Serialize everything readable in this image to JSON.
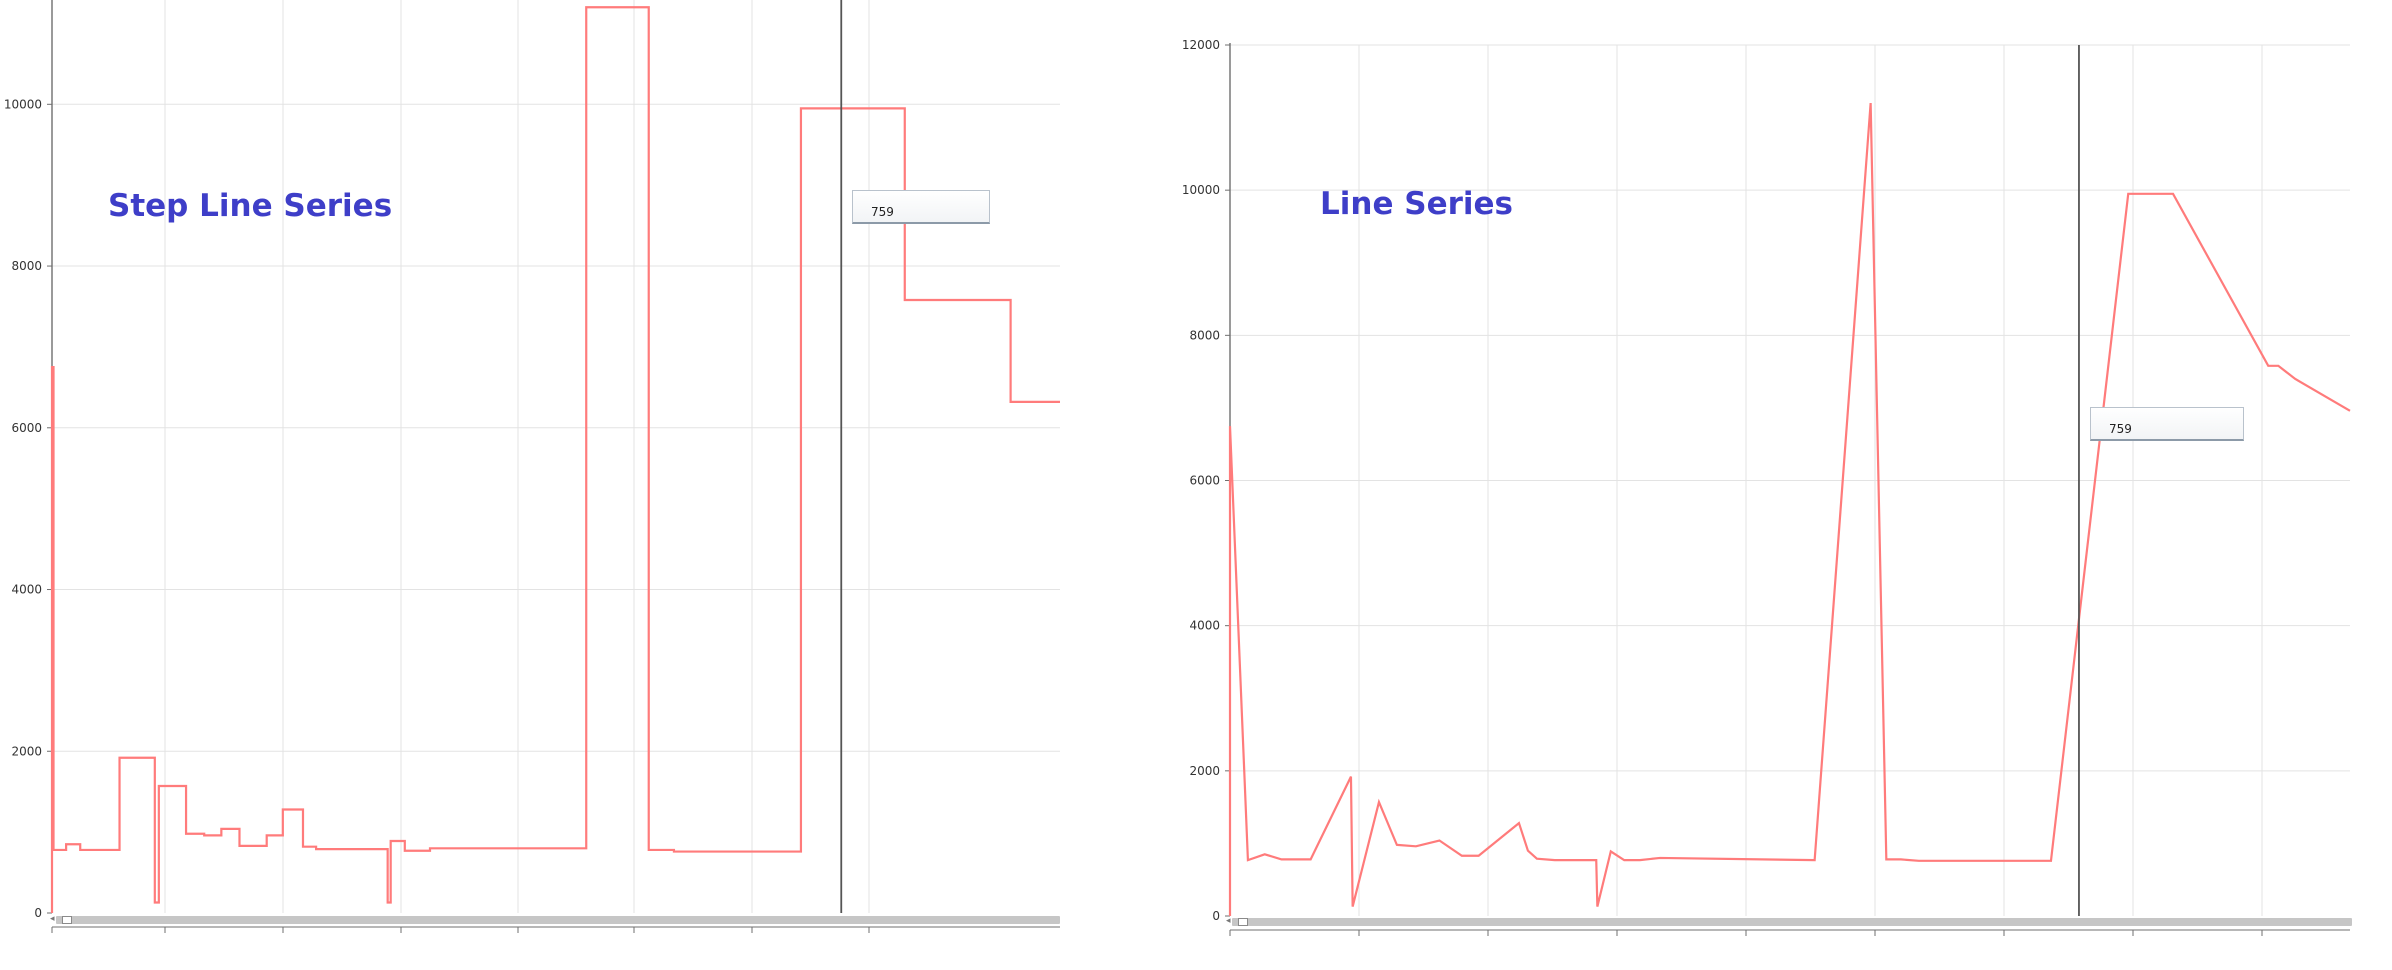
{
  "chart_data": [
    {
      "type": "line",
      "step": true,
      "title": "Step Line Series",
      "xlabel": "",
      "ylabel": "",
      "ylim": [
        0,
        11500
      ],
      "yticks": [
        0,
        2000,
        4000,
        6000,
        8000,
        10000
      ],
      "grid": true,
      "tooltip_value": "759",
      "series": [
        {
          "color": "#ff7b7b",
          "points": [
            [
              0,
              6750
            ],
            [
              0.15,
              780
            ],
            [
              1.4,
              850
            ],
            [
              2.8,
              780
            ],
            [
              6.7,
              1920
            ],
            [
              10.2,
              130
            ],
            [
              10.6,
              1570
            ],
            [
              13.3,
              980
            ],
            [
              15.1,
              960
            ],
            [
              16.8,
              1040
            ],
            [
              18.6,
              830
            ],
            [
              21.3,
              960
            ],
            [
              22.9,
              1280
            ],
            [
              24.9,
              820
            ],
            [
              26.2,
              790
            ],
            [
              33.3,
              130
            ],
            [
              33.6,
              890
            ],
            [
              35.0,
              770
            ],
            [
              37.5,
              800
            ],
            [
              53.0,
              11200
            ],
            [
              59.2,
              780
            ],
            [
              61.7,
              760
            ],
            [
              74.3,
              9950
            ],
            [
              84.6,
              7580
            ],
            [
              95.1,
              6320
            ],
            [
              100,
              6320
            ]
          ]
        }
      ],
      "cursor_x": 78.3
    },
    {
      "type": "line",
      "title": "Line Series",
      "xlabel": "",
      "ylabel": "",
      "ylim": [
        0,
        12000
      ],
      "yticks": [
        0,
        2000,
        4000,
        6000,
        8000,
        10000,
        12000
      ],
      "grid": true,
      "tooltip_value": "759",
      "series": [
        {
          "color": "#ff7b7b",
          "points": [
            [
              0,
              6750
            ],
            [
              1.6,
              770
            ],
            [
              3.1,
              850
            ],
            [
              4.6,
              780
            ],
            [
              7.2,
              780
            ],
            [
              10.8,
              1920
            ],
            [
              10.95,
              130
            ],
            [
              13.3,
              1570
            ],
            [
              14.9,
              980
            ],
            [
              16.6,
              960
            ],
            [
              18.7,
              1040
            ],
            [
              20.7,
              830
            ],
            [
              22.2,
              830
            ],
            [
              25.8,
              1280
            ],
            [
              26.6,
              900
            ],
            [
              27.4,
              790
            ],
            [
              29.0,
              770
            ],
            [
              32.7,
              770
            ],
            [
              32.8,
              130
            ],
            [
              34.0,
              890
            ],
            [
              35.2,
              770
            ],
            [
              36.6,
              770
            ],
            [
              38.4,
              800
            ],
            [
              52.2,
              770
            ],
            [
              57.2,
              11200
            ],
            [
              58.6,
              780
            ],
            [
              59.9,
              780
            ],
            [
              61.5,
              760
            ],
            [
              73.3,
              760
            ],
            [
              80.2,
              9950
            ],
            [
              84.2,
              9950
            ],
            [
              92.7,
              7580
            ],
            [
              93.6,
              7580
            ],
            [
              95.1,
              7400
            ],
            [
              100,
              6960
            ]
          ]
        }
      ],
      "cursor_x": 75.8
    }
  ]
}
